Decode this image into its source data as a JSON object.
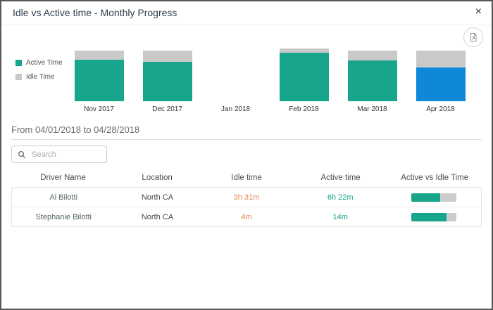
{
  "header": {
    "title": "Idle vs Active time - Monthly Progress",
    "close_glyph": "×"
  },
  "chart_data": {
    "type": "bar",
    "stacked": true,
    "title": "Idle vs Active time - Monthly Progress",
    "categories": [
      "Nov 2017",
      "Dec 2017",
      "Jan 2018",
      "Feb 2018",
      "Mar 2018",
      "Apr 2018"
    ],
    "series": [
      {
        "name": "Active Time",
        "color": "#17a58b",
        "values": [
          79,
          75,
          0,
          92,
          77,
          64
        ]
      },
      {
        "name": "Idle Time",
        "color": "#c9c9c9",
        "values": [
          17,
          21,
          0,
          8,
          19,
          32
        ]
      }
    ],
    "unit": "estimated percent of month",
    "ylim": [
      0,
      100
    ],
    "axes_hidden": true,
    "legend_position": "left",
    "highlighted_category": "Apr 2018",
    "highlight_color": "#1088d8"
  },
  "range": {
    "label": "From 04/01/2018 to 04/28/2018"
  },
  "search": {
    "placeholder": "Search",
    "value": ""
  },
  "table": {
    "columns": [
      "Driver Name",
      "Location",
      "Idle time",
      "Active time",
      "Active vs Idle Time"
    ],
    "rows": [
      {
        "driver": "Al Bilotti",
        "location": "North CA",
        "idle": "3h 31m",
        "active": "6h 22m",
        "active_pct": 64
      },
      {
        "driver": "Stephanie Bilotti",
        "location": "North CA",
        "idle": "4m",
        "active": "14m",
        "active_pct": 78
      }
    ]
  },
  "colors": {
    "active": "#17a58b",
    "idle": "#c9c9c9",
    "highlight": "#1088d8",
    "idle_value_text": "#e8865a",
    "active_value_text": "#17a58b",
    "bar_track": "#cccccc"
  }
}
